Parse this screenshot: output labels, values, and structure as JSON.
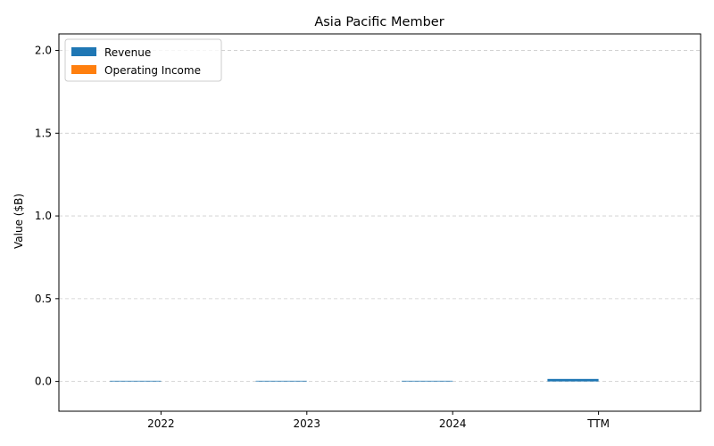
{
  "chart_data": {
    "type": "bar",
    "title": "Asia Pacific Member",
    "xlabel": "",
    "ylabel": "Value ($B)",
    "categories": [
      "2022",
      "2023",
      "2024",
      "TTM"
    ],
    "series": [
      {
        "name": "Revenue",
        "color": "#1f77b4",
        "values": [
          0.004,
          0.004,
          0.004,
          0.015
        ]
      },
      {
        "name": "Operating Income",
        "color": "#ff7f0e",
        "values": [
          0,
          0,
          0,
          0
        ]
      }
    ],
    "ylim": [
      -0.18,
      2.1
    ],
    "yticks": [
      0.0,
      0.5,
      1.0,
      1.5,
      2.0
    ],
    "ytick_labels": [
      "0.0",
      "0.5",
      "1.0",
      "1.5",
      "2.0"
    ],
    "grid": "y-dashed",
    "legend": "top-left"
  }
}
